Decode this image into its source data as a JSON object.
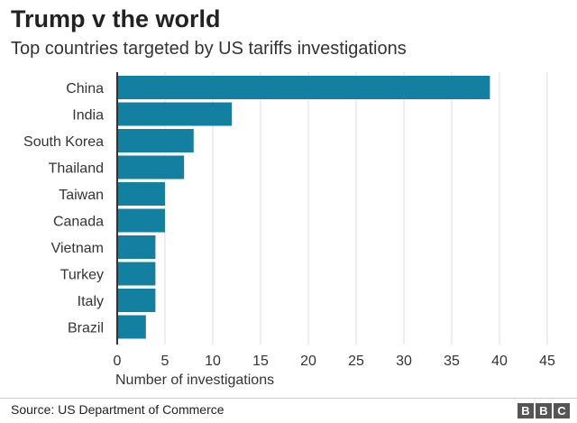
{
  "title": "Trump v the world",
  "subtitle": "Top countries targeted by US tariffs investigations",
  "source": "Source: US Department of Commerce",
  "logo": [
    "B",
    "B",
    "C"
  ],
  "chart_data": {
    "type": "bar",
    "orientation": "horizontal",
    "categories": [
      "China",
      "India",
      "South Korea",
      "Thailand",
      "Taiwan",
      "Canada",
      "Vietnam",
      "Turkey",
      "Italy",
      "Brazil"
    ],
    "values": [
      39,
      12,
      8,
      7,
      5,
      5,
      4,
      4,
      4,
      3
    ],
    "xlabel": "Number of investigations",
    "ylabel": "",
    "xlim": [
      0,
      45
    ],
    "xticks": [
      0,
      5,
      10,
      15,
      20,
      25,
      30,
      35,
      40,
      45
    ],
    "grid": true,
    "bar_color": "#1380a1"
  }
}
